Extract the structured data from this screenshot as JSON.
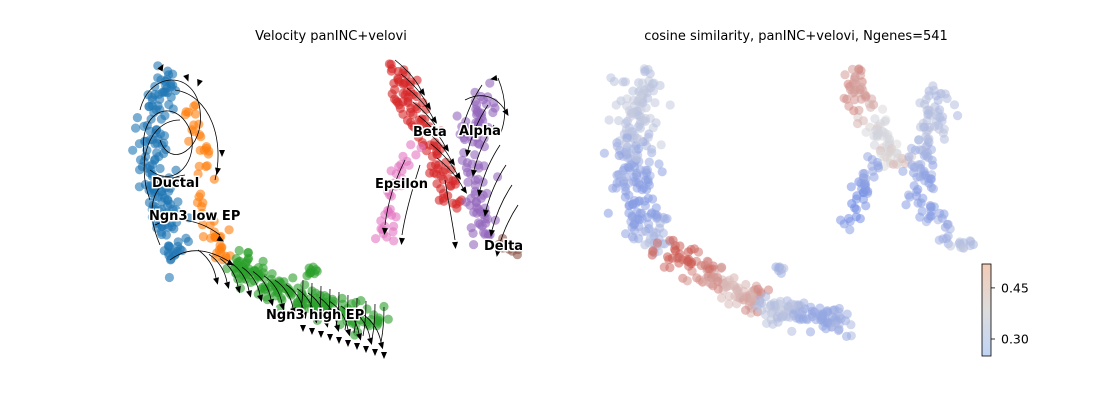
{
  "chart_data": [
    {
      "type": "scatter",
      "title": "Velocity panINC+velovi",
      "xlabel": "",
      "ylabel": "",
      "grid": false,
      "legend": "on data",
      "overlay": "velocity streamlines",
      "clusters": [
        {
          "name": "Ductal",
          "color": "#1f77b4"
        },
        {
          "name": "Ngn3 low EP",
          "color": "#ff7f0e"
        },
        {
          "name": "Ngn3 high EP",
          "color": "#2ca02c"
        },
        {
          "name": "Beta",
          "color": "#d62728"
        },
        {
          "name": "Alpha",
          "color": "#9467bd"
        },
        {
          "name": "Epsilon",
          "color": "#e377c2"
        },
        {
          "name": "Delta",
          "color": "#8c564b"
        }
      ]
    },
    {
      "type": "scatter",
      "title": "cosine similarity, panINC+velovi, Ngenes=541",
      "xlabel": "",
      "ylabel": "",
      "grid": false,
      "colormap": "coolwarm",
      "colorbar": {
        "ticks": [
          0.3,
          0.45
        ],
        "tick_labels": [
          "0.30",
          "0.45"
        ],
        "range": [
          0.25,
          0.52
        ],
        "placement": "bottom-right"
      }
    }
  ]
}
